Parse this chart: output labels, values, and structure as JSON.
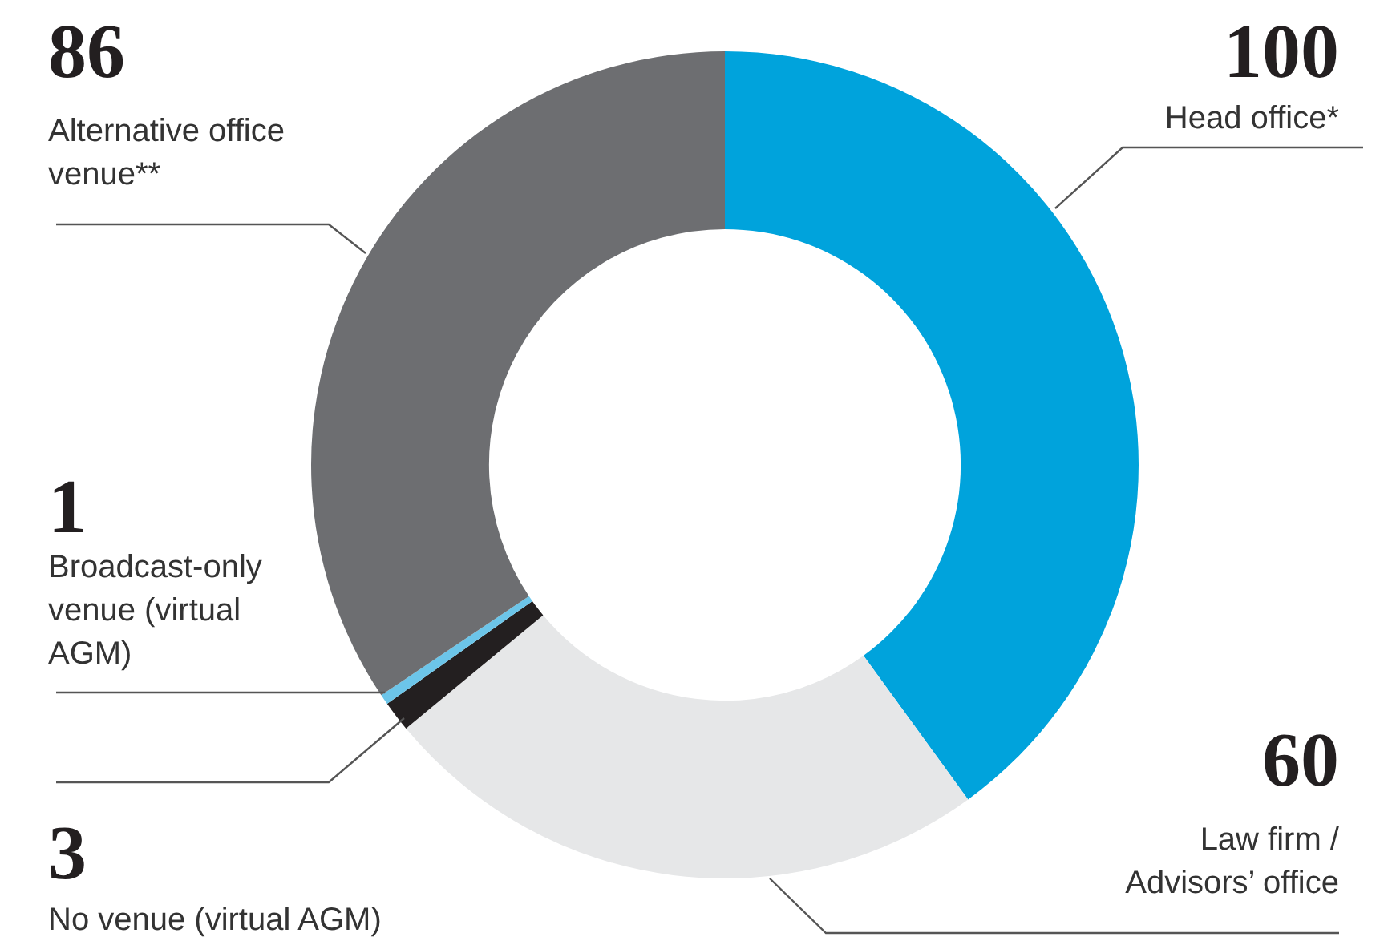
{
  "chart_data": {
    "type": "donut",
    "categories": [
      "Head office*",
      "Law firm / Advisors’ office",
      "No venue (virtual AGM)",
      "Broadcast-only venue (virtual AGM)",
      "Alternative office venue**"
    ],
    "values": [
      100,
      60,
      3,
      1,
      86
    ],
    "colors": [
      "#00a3dc",
      "#e6e7e8",
      "#231f20",
      "#6cc5e9",
      "#6d6e71"
    ],
    "data_labels": true,
    "legend": false
  }
}
